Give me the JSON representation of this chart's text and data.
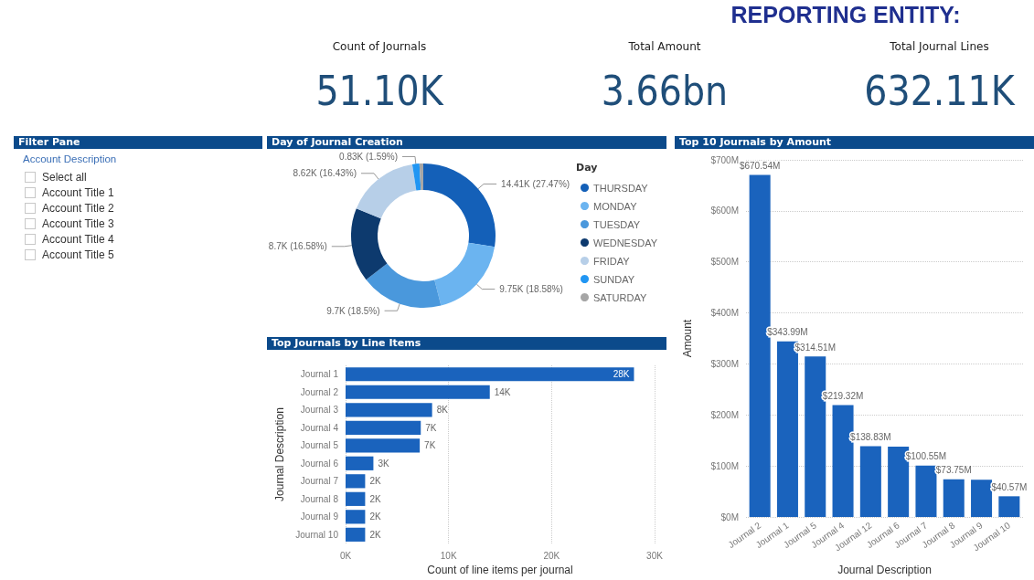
{
  "chart_data": [
    {
      "type": "other",
      "title": "REPORTING ENTITY:"
    },
    {
      "type": "other",
      "title": "Count of Journals",
      "annotations": [
        "51.10K"
      ]
    },
    {
      "type": "other",
      "title": "Total Amount",
      "annotations": [
        "3.66bn"
      ]
    },
    {
      "type": "other",
      "title": "Total Journal Lines",
      "annotations": [
        "632.11K"
      ]
    },
    {
      "type": "other",
      "title": "Filter Pane",
      "subtitle": "Account Description",
      "annotations": [
        "Select all",
        "Account Title 1",
        "Account Title 2",
        "Account Title 3",
        "Account Title 4",
        "Account Title 5"
      ]
    },
    {
      "type": "donut",
      "title": "Day of Journal Creation",
      "legend_title": "Day",
      "legend": "right",
      "categories": [
        "THURSDAY",
        "MONDAY",
        "TUESDAY",
        "WEDNESDAY",
        "FRIDAY",
        "SUNDAY",
        "SATURDAY"
      ],
      "values": [
        14410,
        9750,
        9700,
        8700,
        8620,
        830,
        450
      ],
      "value_labels": [
        "14.41K (27.47%)",
        "9.75K (18.58%)",
        "9.7K (18.5%)",
        "8.7K (16.58%)",
        "8.62K (16.43%)",
        "0.83K (1.59%)",
        null
      ],
      "colors": [
        "#1460b8",
        "#6bb4f0",
        "#4a98dc",
        "#0d3a6e",
        "#b7cfe8",
        "#2196f3",
        "#a6a6a6"
      ]
    },
    {
      "type": "bar",
      "title": "Top 10 Journals by Amount",
      "xlabel": "Journal Description",
      "ylabel": "Amount",
      "grid": "y",
      "categories": [
        "Journal 2",
        "Journal 1",
        "Journal 5",
        "Journal 4",
        "Journal 12",
        "Journal 6",
        "Journal 7",
        "Journal 8",
        "Journal 9",
        "Journal 10"
      ],
      "values": [
        670.54,
        343.99,
        314.51,
        219.32,
        138.83,
        138,
        100.55,
        73.75,
        73,
        40.57
      ],
      "value_labels": [
        "$670.54M",
        "$343.99M",
        "$314.51M",
        "$219.32M",
        "$138.83M",
        null,
        "$100.55M",
        "$73.75M",
        null,
        "$40.57M"
      ],
      "color": "#1a63bd",
      "ylim": [
        0,
        700
      ],
      "yticks": [
        {
          "value": 0,
          "label": "$0M"
        },
        {
          "value": 100,
          "label": "$100M"
        },
        {
          "value": 200,
          "label": "$200M"
        },
        {
          "value": 300,
          "label": "$300M"
        },
        {
          "value": 400,
          "label": "$400M"
        },
        {
          "value": 500,
          "label": "$500M"
        },
        {
          "value": 600,
          "label": "$600M"
        },
        {
          "value": 700,
          "label": "$700M"
        }
      ]
    },
    {
      "type": "bar",
      "orientation": "horizontal",
      "title": "Top Journals by Line Items",
      "xlabel": "Count of line items per journal",
      "ylabel": "Journal Description",
      "grid": "x",
      "categories": [
        "Journal 1",
        "Journal 2",
        "Journal 3",
        "Journal 4",
        "Journal 5",
        "Journal 6",
        "Journal 7",
        "Journal 8",
        "Journal 9",
        "Journal 10"
      ],
      "values": [
        28000,
        14000,
        8400,
        7300,
        7200,
        2700,
        1900,
        1900,
        1900,
        1900
      ],
      "value_labels": [
        "28K",
        "14K",
        "8K",
        "7K",
        "7K",
        "3K",
        "2K",
        "2K",
        "2K",
        "2K"
      ],
      "color": "#1a63bd",
      "xlim": [
        0,
        30000
      ],
      "xticks": [
        {
          "value": 0,
          "label": "0K"
        },
        {
          "value": 10000,
          "label": "10K"
        },
        {
          "value": 20000,
          "label": "20K"
        },
        {
          "value": 30000,
          "label": "30K"
        }
      ]
    }
  ]
}
